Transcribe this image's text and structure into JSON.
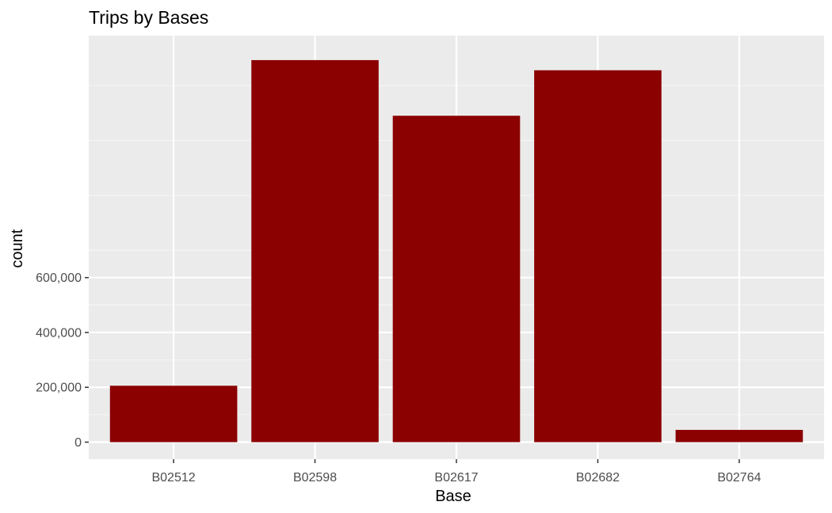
{
  "chart_data": {
    "type": "bar",
    "title": "Trips by Bases",
    "xlabel": "Base",
    "ylabel": "count",
    "categories": [
      "B02512",
      "B02598",
      "B02617",
      "B02682",
      "B02764"
    ],
    "values": [
      205673,
      1393113,
      1190226,
      1356130,
      44660
    ],
    "ylim": [
      0,
      1446336
    ],
    "yticks": [
      0,
      200000,
      400000,
      600000
    ],
    "ytick_labels": [
      "0",
      "200,000",
      "400,000",
      "600,000"
    ],
    "grid": true,
    "legend": "none",
    "colors": {
      "bar": "#8b0000",
      "panel": "#ebebeb",
      "grid_major": "#ffffff",
      "grid_minor": "#f5f5f5",
      "tick": "#333333"
    }
  }
}
